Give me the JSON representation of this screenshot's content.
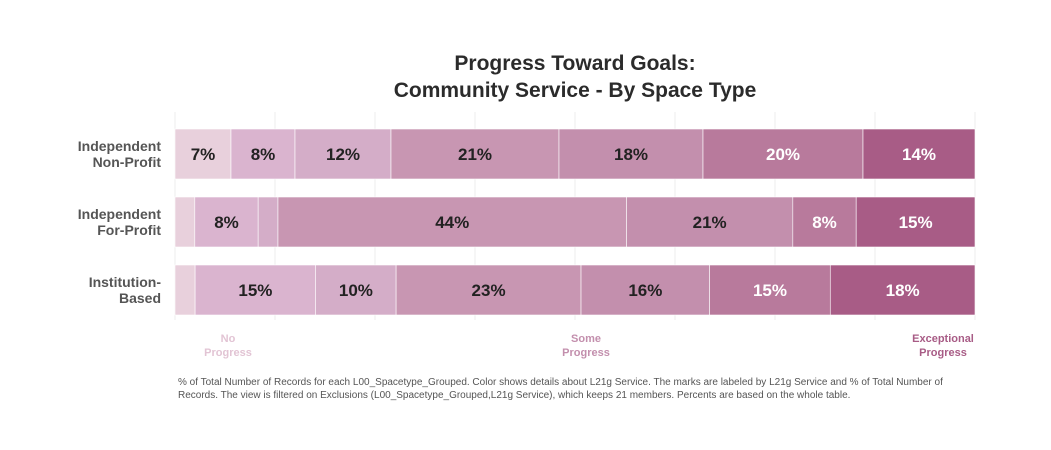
{
  "chart_data": {
    "type": "bar",
    "orientation": "horizontal",
    "stacked": true,
    "title_lines": [
      "Progress Toward Goals:",
      "Community Service - By Space Type"
    ],
    "categories": [
      {
        "lines": [
          "Independent",
          "Non-Profit"
        ]
      },
      {
        "lines": [
          "Independent",
          "For-Profit"
        ]
      },
      {
        "lines": [
          "Institution-",
          "Based"
        ]
      }
    ],
    "series_colors": [
      "#e8d0dc",
      "#dab4cf",
      "#d4adc8",
      "#c896b2",
      "#c38fad",
      "#b87a9c",
      "#a85c86"
    ],
    "values": [
      [
        7,
        8,
        12,
        21,
        18,
        20,
        14
      ],
      [
        2.5,
        8,
        2.5,
        44,
        21,
        8,
        15
      ],
      [
        2.5,
        15,
        10,
        23,
        16,
        15,
        18
      ]
    ],
    "labels": [
      [
        "7%",
        "8%",
        "12%",
        "21%",
        "18%",
        "20%",
        "14%"
      ],
      [
        "",
        "8%",
        "",
        "44%",
        "21%",
        "8%",
        "15%"
      ],
      [
        "",
        "15%",
        "10%",
        "23%",
        "16%",
        "15%",
        "18%"
      ]
    ],
    "label_colors": [
      "#222222",
      "#222222",
      "#222222",
      "#222222",
      "#222222",
      "#ffffff",
      "#ffffff"
    ],
    "xlim": [
      0,
      100
    ],
    "grid": true,
    "legend": [
      {
        "lines": [
          "No",
          "Progress"
        ],
        "color": "#e2c4d4",
        "position": "start"
      },
      {
        "lines": [
          "Some",
          "Progress"
        ],
        "color": "#c38fad",
        "position": "middle"
      },
      {
        "lines": [
          "Exceptional",
          "Progress"
        ],
        "color": "#a85c86",
        "position": "end"
      }
    ],
    "footnote": "% of Total Number of Records for each L00_Spacetype_Grouped. Color shows details about L21g Service. The marks are labeled by L21g Service and % of Total Number of Records. The view is filtered on Exclusions (L00_Spacetype_Grouped,L21g Service), which keeps 21 members. Percents are based on the whole table."
  }
}
